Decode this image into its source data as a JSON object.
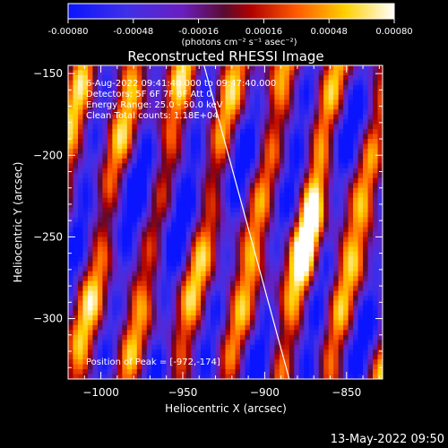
{
  "colorbar": {
    "ticks": [
      "-0.00080",
      "-0.00048",
      "-0.00016",
      "0.00016",
      "0.00048",
      "0.00080"
    ],
    "unit_label": "(photons cm⁻² s⁻¹ asec⁻²)"
  },
  "info": {
    "time": "6-Aug-2022 09:41:40.000 to 09:47:40.000",
    "detectors": "Detectors: 5F 6F 7F 8F  Att 0",
    "energy": "Energy Range: 25.0 - 50.0 keV",
    "clean": "Clean    Total counts: 1.18E+04",
    "peak": "Position of Peak = [-972,-174]"
  },
  "footer_date": "13-May-2022 09:50",
  "colors": {
    "background": "#000000",
    "text": "#ffffff",
    "limb": "#ffffff"
  },
  "chart_data": {
    "type": "heatmap",
    "title": "Reconstructed RHESSI Image",
    "xlabel": "Heliocentric X (arcsec)",
    "ylabel": "Heliocentric Y (arcsec)",
    "xlim": [
      -1020,
      -828
    ],
    "ylim": [
      -337,
      -145
    ],
    "xticks": [
      -1000,
      -950,
      -900,
      -850
    ],
    "xtick_labels": [
      "−1000",
      "−950",
      "−900",
      "−850"
    ],
    "yticks": [
      -150,
      -200,
      -250,
      -300
    ],
    "ytick_labels": [
      "−150",
      "−200",
      "−250",
      "−300"
    ],
    "color_range": [
      -0.0008,
      0.0008
    ],
    "colormap": "blue-purple-red-yellow-white",
    "limb_line": [
      [
        -937,
        -145
      ],
      [
        -885,
        -337
      ]
    ],
    "peak": [
      -972,
      -174
    ]
  }
}
